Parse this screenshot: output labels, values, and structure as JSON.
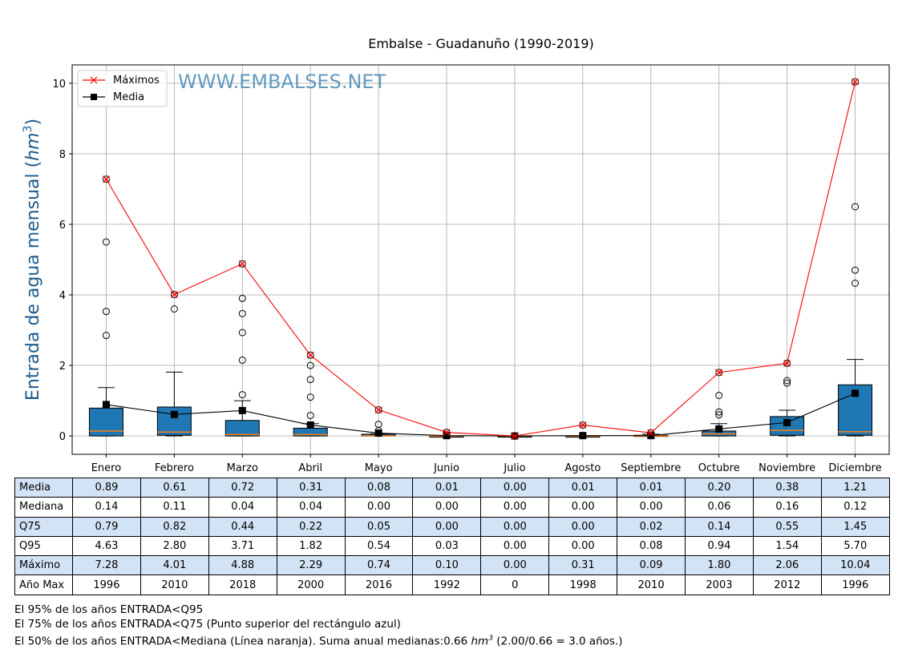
{
  "chart_data": {
    "type": "box",
    "title": "Embalse - Guadanuño (1990-2019)",
    "ylabel": "Entrada de agua mensual (",
    "ylabel_unit": "hm",
    "ylabel_exp": "3",
    "ylabel_close": ")",
    "watermark": "WWW.EMBALSES.NET",
    "ylim": [
      -0.52,
      10.52
    ],
    "yticks": [
      0,
      2,
      4,
      6,
      8,
      10
    ],
    "grid": true,
    "legend_position": "top-left",
    "legend": [
      {
        "label": "Máximos",
        "color": "#ff0000"
      },
      {
        "label": "Media",
        "color": "#000000"
      }
    ],
    "categories": [
      "Enero",
      "Febrero",
      "Marzo",
      "Abril",
      "Mayo",
      "Junio",
      "Julio",
      "Agosto",
      "Septiembre",
      "Octubre",
      "Noviembre",
      "Diciembre"
    ],
    "box_color": "#1f77b4",
    "median_color": "#ff7f0e",
    "boxes": {
      "q1": [
        0,
        0.02,
        0,
        0,
        0,
        0,
        0,
        0,
        0,
        0,
        0.02,
        0.02
      ],
      "median": [
        0.14,
        0.11,
        0.04,
        0.04,
        0,
        0,
        0,
        0,
        0,
        0.06,
        0.16,
        0.12
      ],
      "q3": [
        0.79,
        0.82,
        0.44,
        0.22,
        0.05,
        0,
        0,
        0,
        0.02,
        0.14,
        0.55,
        1.45
      ],
      "whisker_low": [
        0,
        0,
        0,
        0,
        0,
        0,
        0,
        0,
        0,
        0,
        0,
        0
      ],
      "whisker_high": [
        1.37,
        1.81,
        1.0,
        0.35,
        0.06,
        0,
        0,
        0,
        0.05,
        0.35,
        0.73,
        2.17
      ],
      "outliers": [
        [
          5.5,
          3.53,
          2.85
        ],
        [
          3.6
        ],
        [
          3.9,
          3.47,
          2.93,
          2.15,
          1.17
        ],
        [
          2.0,
          1.6,
          1.1,
          0.58
        ],
        [
          0.33,
          0.15
        ],
        [],
        [],
        [],
        [],
        [
          1.15,
          0.68,
          0.6
        ],
        [
          1.57,
          1.5
        ],
        [
          6.5,
          4.7,
          4.33
        ]
      ]
    },
    "series": [
      {
        "name": "Máximos",
        "values": [
          7.28,
          4.01,
          4.88,
          2.29,
          0.74,
          0.1,
          0.0,
          0.31,
          0.09,
          1.8,
          2.06,
          10.04
        ]
      },
      {
        "name": "Media",
        "values": [
          0.89,
          0.61,
          0.72,
          0.31,
          0.08,
          0.01,
          0.0,
          0.01,
          0.01,
          0.2,
          0.38,
          1.21
        ]
      }
    ]
  },
  "table": {
    "columns": [
      "Enero",
      "Febrero",
      "Marzo",
      "Abril",
      "Mayo",
      "Junio",
      "Julio",
      "Agosto",
      "Septiembre",
      "Octubre",
      "Noviembre",
      "Diciembre"
    ],
    "rows": [
      {
        "label": "Media",
        "values": [
          "0.89",
          "0.61",
          "0.72",
          "0.31",
          "0.08",
          "0.01",
          "0.00",
          "0.01",
          "0.01",
          "0.20",
          "0.38",
          "1.21"
        ]
      },
      {
        "label": "Mediana",
        "values": [
          "0.14",
          "0.11",
          "0.04",
          "0.04",
          "0.00",
          "0.00",
          "0.00",
          "0.00",
          "0.00",
          "0.06",
          "0.16",
          "0.12"
        ]
      },
      {
        "label": "Q75",
        "values": [
          "0.79",
          "0.82",
          "0.44",
          "0.22",
          "0.05",
          "0.00",
          "0.00",
          "0.00",
          "0.02",
          "0.14",
          "0.55",
          "1.45"
        ]
      },
      {
        "label": "Q95",
        "values": [
          "4.63",
          "2.80",
          "3.71",
          "1.82",
          "0.54",
          "0.03",
          "0.00",
          "0.00",
          "0.08",
          "0.94",
          "1.54",
          "5.70"
        ]
      },
      {
        "label": "Máximo",
        "values": [
          "7.28",
          "4.01",
          "4.88",
          "2.29",
          "0.74",
          "0.10",
          "0.00",
          "0.31",
          "0.09",
          "1.80",
          "2.06",
          "10.04"
        ]
      },
      {
        "label": "Año Max",
        "values": [
          "1996",
          "2010",
          "2018",
          "2000",
          "2016",
          "1992",
          "0",
          "1998",
          "2010",
          "2003",
          "2012",
          "1996"
        ]
      }
    ]
  },
  "notes": {
    "line1": "El 95% de los años ENTRADA<Q95",
    "line2": "El 75% de los años ENTRADA<Q75 (Punto superior del rectángulo azul)",
    "line3_a": "El 50% de los años ENTRADA<Mediana (Línea naranja). Suma anual medianas:0.66 ",
    "line3_unit": "hm",
    "line3_exp": "3",
    "line3_b": " (2.00/0.66 = 3.0 años.)"
  }
}
